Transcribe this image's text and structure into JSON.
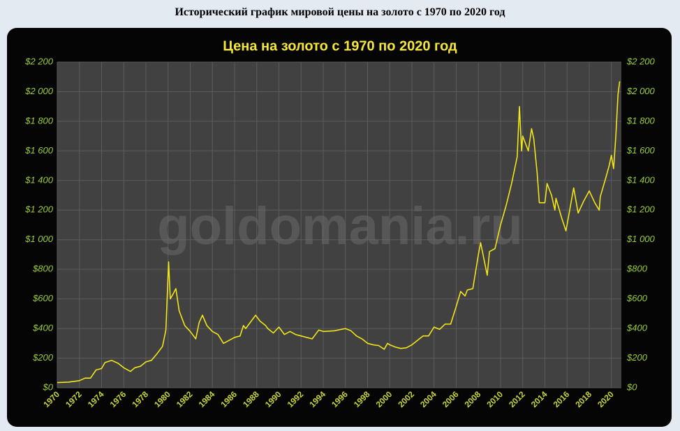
{
  "page_title": "Исторический график мировой цены на золото с 1970 по 2020 год",
  "chart_data": {
    "type": "line",
    "title": "Цена на золото с 1970 по 2020 год",
    "watermark": "goldomania.ru",
    "color": "#f2e51a",
    "grid": true,
    "x": [
      1970,
      1971,
      1972,
      1972.5,
      1973,
      1973.5,
      1974,
      1974.3,
      1974.9,
      1975.5,
      1976,
      1976.6,
      1977,
      1977.5,
      1978,
      1978.5,
      1979,
      1979.5,
      1979.8,
      1980.05,
      1980.2,
      1980.5,
      1980.7,
      1981,
      1981.5,
      1982,
      1982.5,
      1982.8,
      1983.1,
      1983.5,
      1984,
      1984.5,
      1985,
      1985.5,
      1986,
      1986.5,
      1986.8,
      1987,
      1987.5,
      1987.9,
      1988.3,
      1988.8,
      1989,
      1989.5,
      1990,
      1990.5,
      1991,
      1991.5,
      1992,
      1992.5,
      1993,
      1993.6,
      1994,
      1995,
      1996,
      1996.5,
      1997,
      1997.5,
      1998,
      1998.5,
      1999,
      1999.5,
      1999.8,
      2000,
      2000.5,
      2001,
      2001.5,
      2002,
      2002.5,
      2003,
      2003.5,
      2004,
      2004.5,
      2005,
      2005.5,
      2006,
      2006.4,
      2006.8,
      2007,
      2007.5,
      2008,
      2008.2,
      2008.8,
      2009,
      2009.5,
      2010,
      2010.5,
      2011,
      2011.5,
      2011.7,
      2011.9,
      2012,
      2012.5,
      2012.8,
      2013,
      2013.3,
      2013.5,
      2014,
      2014.2,
      2014.6,
      2014.9,
      2015,
      2015.5,
      2015.9,
      2016,
      2016.6,
      2017,
      2017.5,
      2018,
      2018.5,
      2018.9,
      2019,
      2019.5,
      2019.8,
      2020,
      2020.2,
      2020.4,
      2020.6,
      2020.75
    ],
    "values": [
      35,
      38,
      48,
      65,
      65,
      120,
      130,
      170,
      185,
      165,
      135,
      110,
      135,
      145,
      175,
      185,
      230,
      280,
      390,
      850,
      600,
      640,
      670,
      520,
      420,
      380,
      330,
      440,
      490,
      420,
      380,
      360,
      300,
      320,
      340,
      350,
      420,
      400,
      450,
      490,
      450,
      420,
      400,
      370,
      410,
      360,
      380,
      360,
      350,
      340,
      330,
      390,
      380,
      385,
      400,
      385,
      350,
      330,
      300,
      290,
      285,
      260,
      300,
      290,
      275,
      265,
      270,
      290,
      320,
      350,
      350,
      410,
      395,
      430,
      430,
      550,
      650,
      620,
      660,
      670,
      900,
      980,
      760,
      920,
      940,
      1100,
      1230,
      1380,
      1560,
      1900,
      1600,
      1700,
      1600,
      1750,
      1680,
      1450,
      1250,
      1250,
      1380,
      1300,
      1200,
      1280,
      1150,
      1060,
      1100,
      1350,
      1180,
      1260,
      1330,
      1250,
      1200,
      1290,
      1420,
      1500,
      1570,
      1480,
      1700,
      1980,
      2070
    ],
    "xlim": [
      1970,
      2020.9
    ],
    "xticks": [
      1970,
      1972,
      1974,
      1976,
      1978,
      1980,
      1982,
      1984,
      1986,
      1988,
      1990,
      1992,
      1994,
      1996,
      1998,
      2000,
      2002,
      2004,
      2006,
      2008,
      2010,
      2012,
      2014,
      2016,
      2018,
      2020
    ],
    "ylim": [
      0,
      2200
    ],
    "yticks": [
      {
        "value": 0,
        "label": "$0"
      },
      {
        "value": 200,
        "label": "$200"
      },
      {
        "value": 400,
        "label": "$400"
      },
      {
        "value": 600,
        "label": "$600"
      },
      {
        "value": 800,
        "label": "$800"
      },
      {
        "value": 1000,
        "label": "$1 000"
      },
      {
        "value": 1200,
        "label": "$1 200"
      },
      {
        "value": 1400,
        "label": "$1 400"
      },
      {
        "value": 1600,
        "label": "$1 600"
      },
      {
        "value": 1800,
        "label": "$1 800"
      },
      {
        "value": 2000,
        "label": "$2 000"
      },
      {
        "value": 2200,
        "label": "$2 200"
      }
    ]
  }
}
